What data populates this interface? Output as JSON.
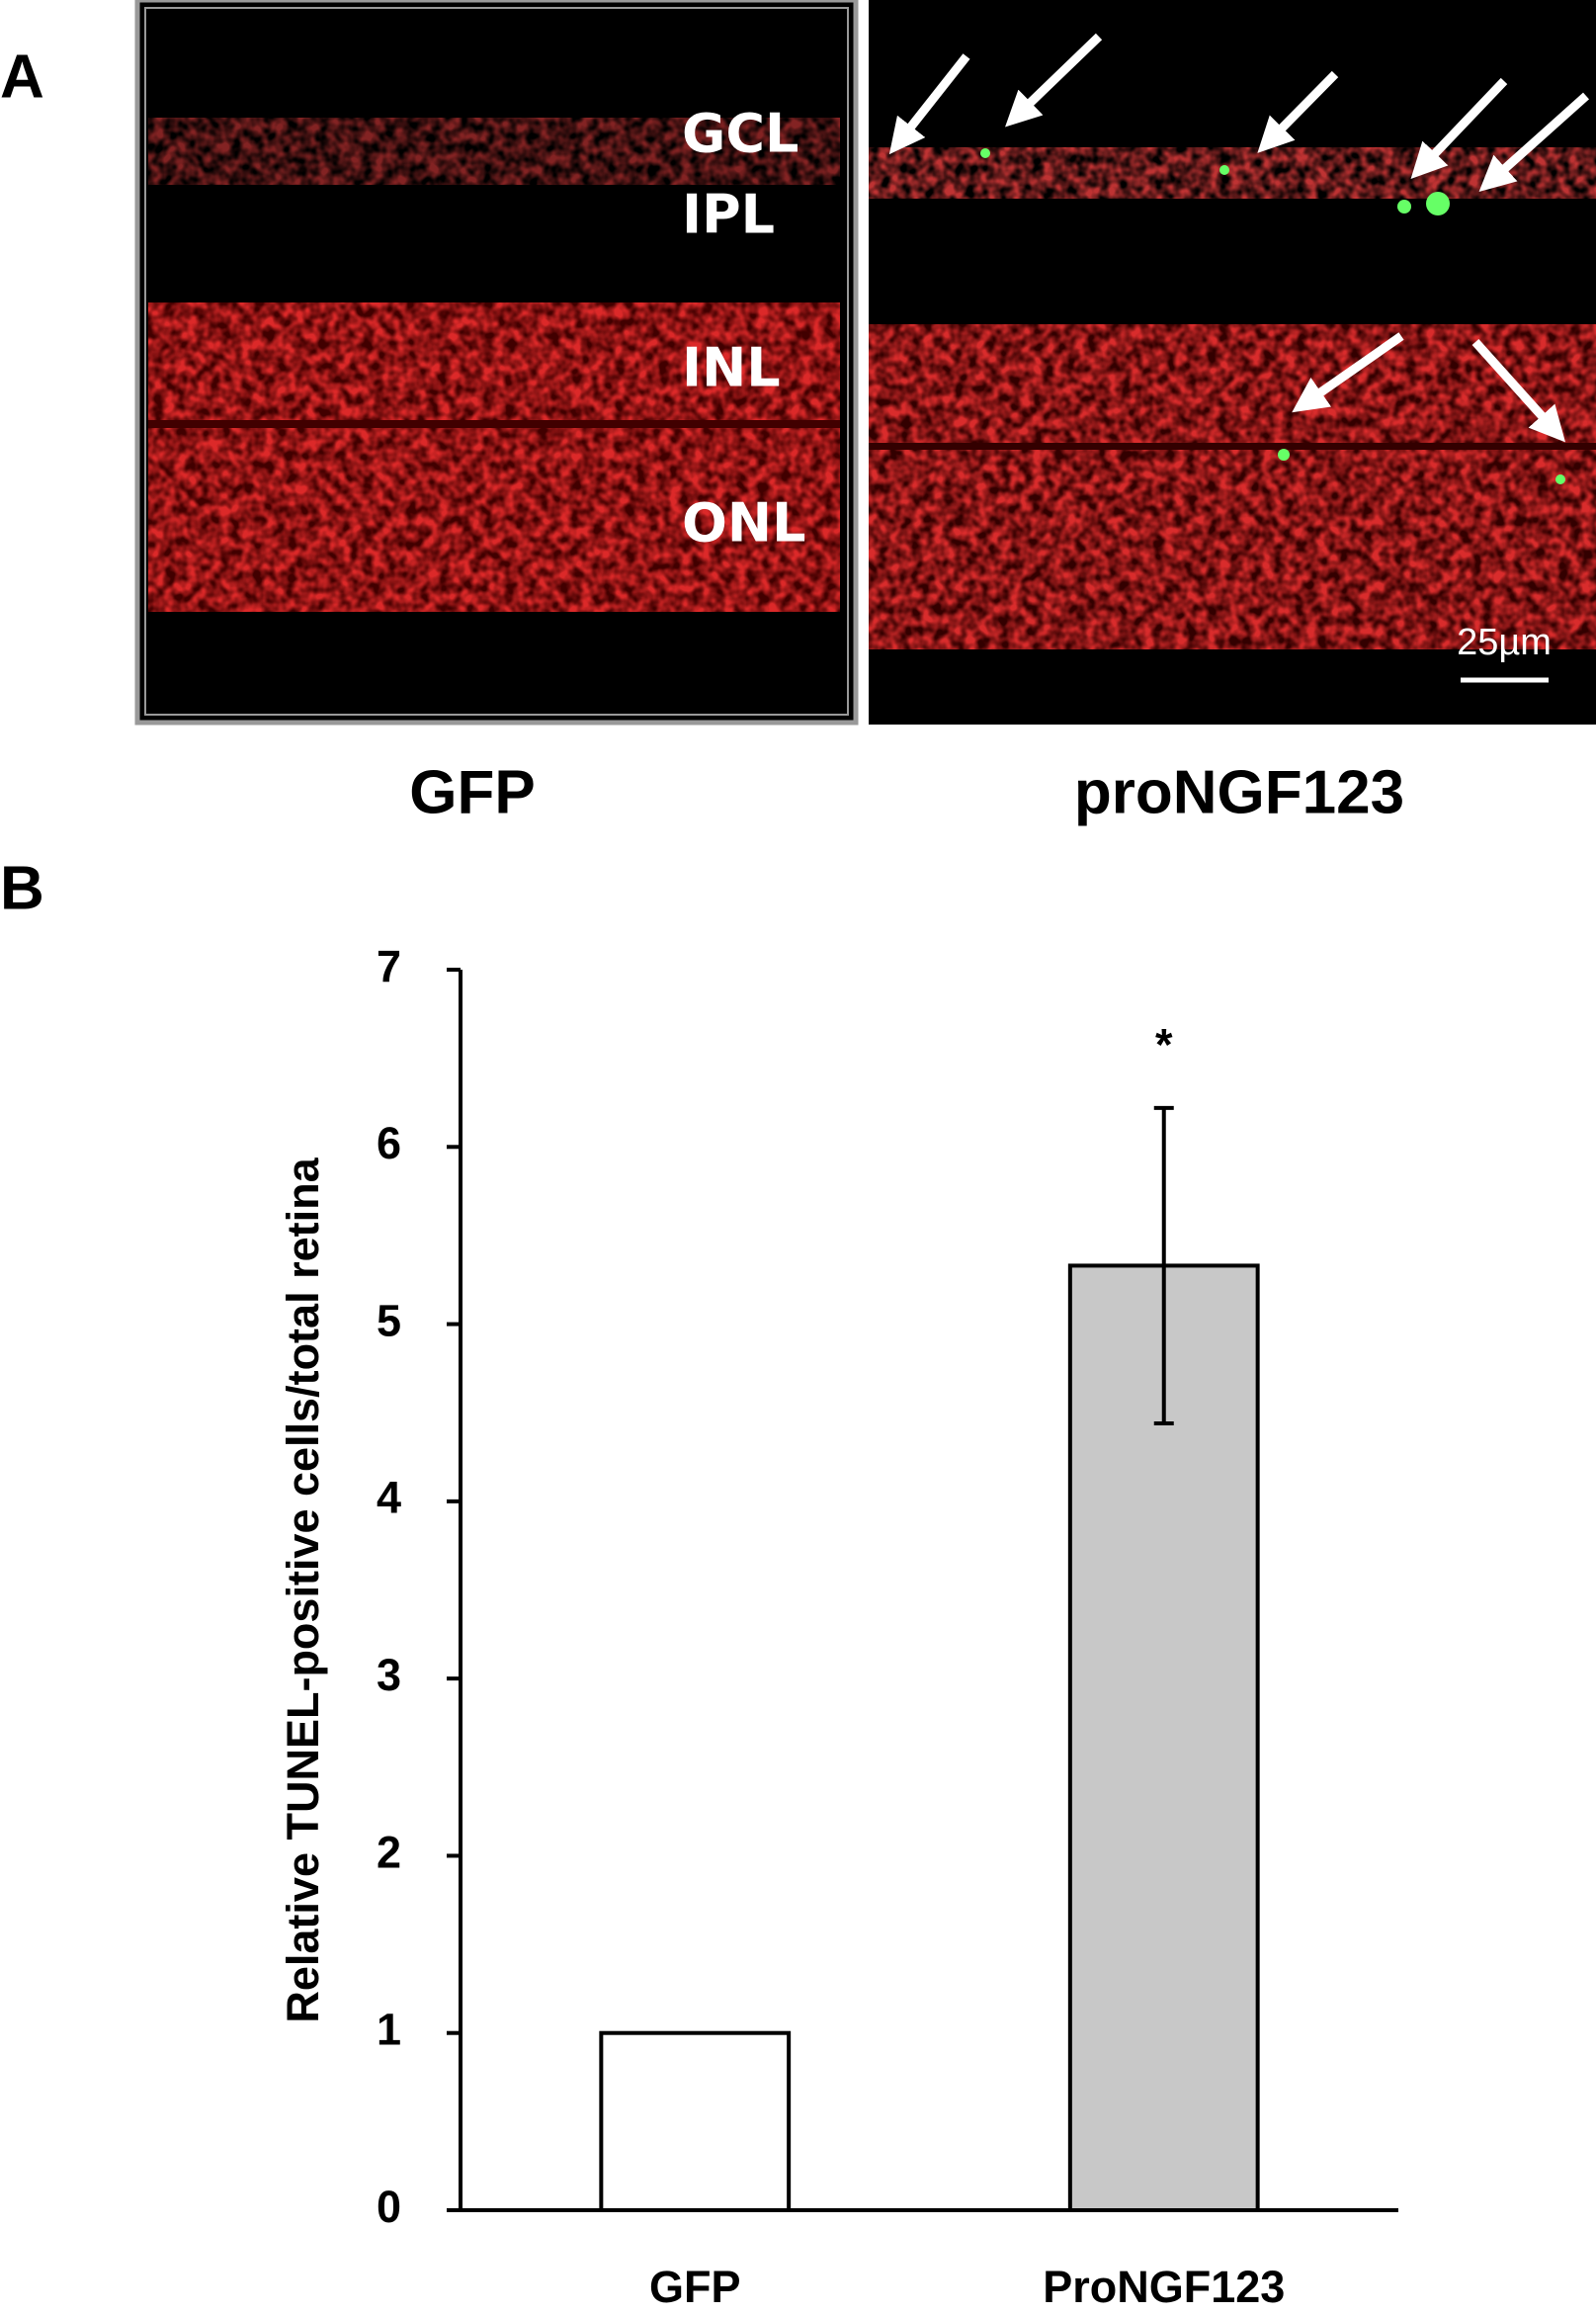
{
  "panel_a": {
    "label": "A",
    "layers": [
      "GCL",
      "IPL",
      "INL",
      "ONL"
    ],
    "scale_bar": "25µm",
    "captions": [
      "GFP",
      "proNGF123"
    ]
  },
  "panel_b": {
    "label": "B"
  },
  "chart_data": {
    "type": "bar",
    "ylabel": "Relative TUNEL-positive  cells/total retina",
    "categories": [
      "GFP",
      "ProNGF123"
    ],
    "values": [
      1,
      5.33
    ],
    "errors": [
      null,
      0.89
    ],
    "colors": [
      "#ffffff",
      "#c8c8c8"
    ],
    "annotation": "*",
    "ylim": [
      0,
      7
    ],
    "yticks": [
      0,
      1,
      2,
      3,
      4,
      5,
      6,
      7
    ],
    "grid": false
  }
}
